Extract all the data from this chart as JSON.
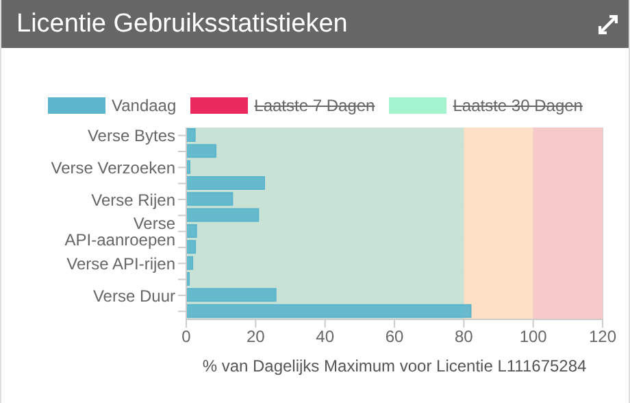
{
  "chart_data": {
    "type": "bar",
    "orientation": "horizontal",
    "title": "Licentie Gebruiksstatistieken",
    "xlabel": "% van Dagelijks Maximum voor Licentie L111675284",
    "categories": [
      "Verse Bytes",
      null,
      "Verse Verzoeken",
      null,
      "Verse Rijen",
      null,
      "Verse API-aanroepen",
      null,
      "Verse API-rijen",
      null,
      "Verse Duur",
      null
    ],
    "series": [
      {
        "name": "Vandaag",
        "color": "#5bb5cc",
        "values": [
          2.5,
          8.5,
          1,
          22.5,
          13.3,
          20.8,
          2.9,
          2.6,
          1.8,
          0.8,
          25.8,
          82
        ]
      },
      {
        "name": "Laatste 7 Dagen",
        "color": "#ea2a5f",
        "values": [
          null,
          null,
          null,
          null,
          null,
          null,
          null,
          null,
          null,
          null,
          null,
          null
        ]
      },
      {
        "name": "Laatste 30 Dagen",
        "color": "#a4f4d0",
        "values": [
          null,
          null,
          null,
          null,
          null,
          null,
          null,
          null,
          null,
          null,
          null,
          null
        ]
      }
    ],
    "xlim": [
      0,
      120
    ],
    "xticks": [
      0,
      20,
      40,
      60,
      80,
      100,
      120
    ],
    "bands": [
      {
        "axis": "x",
        "from": 0,
        "to": 80,
        "color": "#c8e3d6"
      },
      {
        "axis": "x",
        "from": 80,
        "to": 100,
        "color": "#fde0c6"
      },
      {
        "axis": "x",
        "from": 100,
        "to": 120,
        "color": "#f7c9ca"
      }
    ],
    "grid": true,
    "legend": "top"
  }
}
